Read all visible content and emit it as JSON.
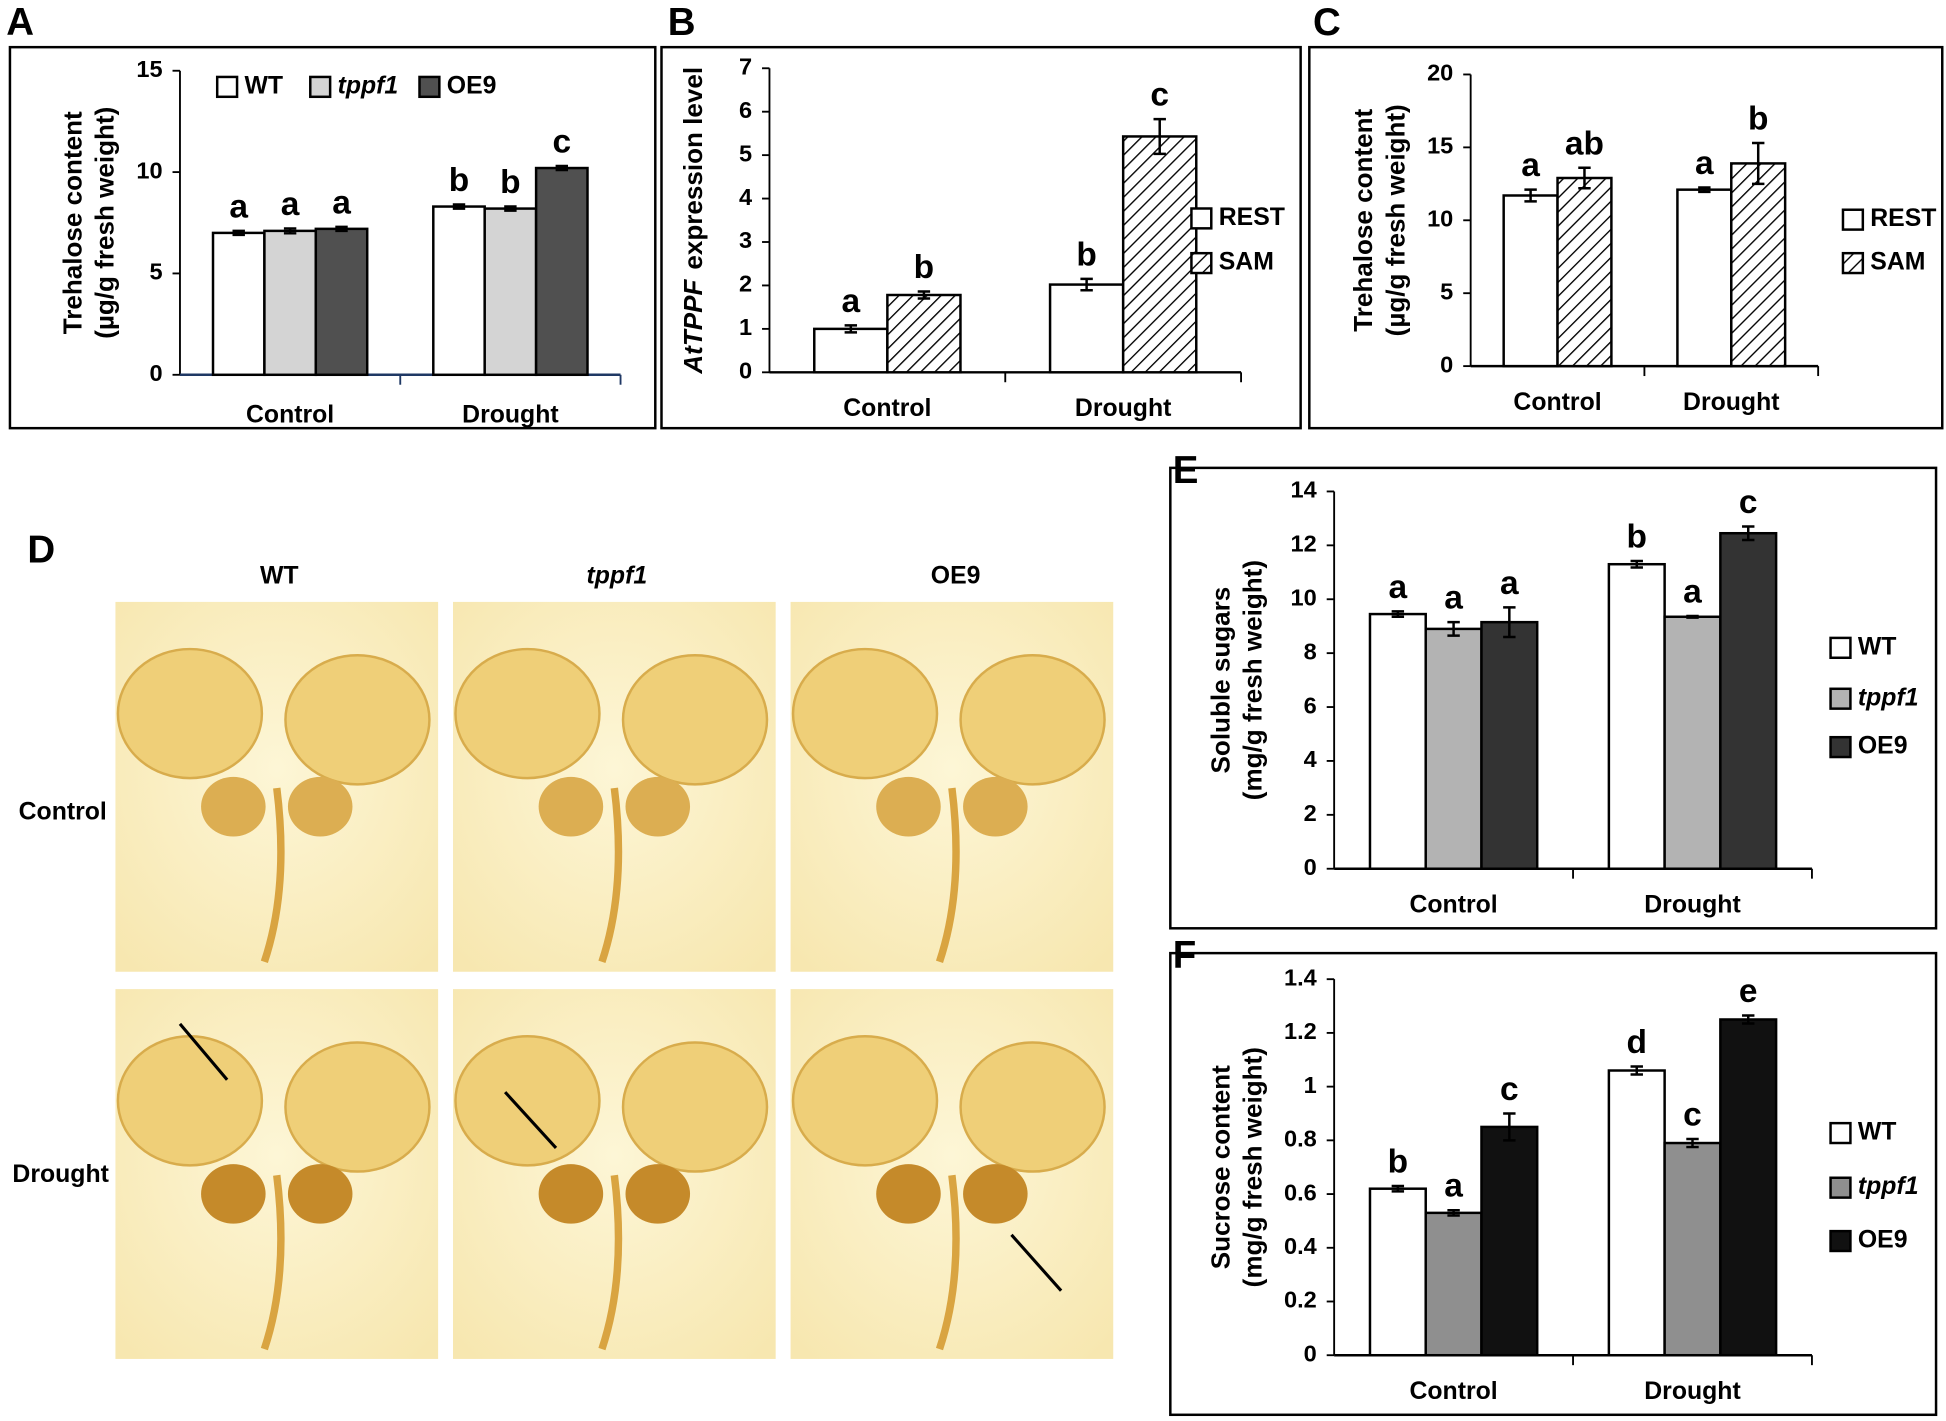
{
  "chart_data": [
    {
      "type": "bar",
      "panel_label": "A",
      "ylabel": [
        "Trehalose content",
        "(µg/g fresh weight)"
      ],
      "categories": [
        "Control",
        "Drought"
      ],
      "ylim": [
        0,
        15
      ],
      "yticks": [
        0,
        5,
        10,
        15
      ],
      "series": [
        {
          "name": "WT",
          "color": "#ffffff",
          "values": [
            7.0,
            8.3
          ],
          "errors": [
            0.1,
            0.1
          ],
          "letters": [
            "a",
            "b"
          ]
        },
        {
          "name": "tppf1",
          "italic": true,
          "color": "#d4d4d4",
          "values": [
            7.1,
            8.2
          ],
          "errors": [
            0.12,
            0.1
          ],
          "letters": [
            "a",
            "b"
          ]
        },
        {
          "name": "OE9",
          "color": "#505050",
          "values": [
            7.2,
            10.2
          ],
          "errors": [
            0.1,
            0.1
          ],
          "letters": [
            "a",
            "c"
          ]
        }
      ]
    },
    {
      "type": "bar",
      "panel_label": "B",
      "ylabel_parts": [
        {
          "text": "AtTPPF",
          "italic": true
        },
        {
          "text": "expression level",
          "italic": false
        }
      ],
      "categories": [
        "Control",
        "Drought"
      ],
      "ylim": [
        0,
        7
      ],
      "yticks": [
        0,
        1,
        2,
        3,
        4,
        5,
        6,
        7
      ],
      "series": [
        {
          "name": "REST",
          "color": "#ffffff",
          "values": [
            1.0,
            2.02
          ],
          "errors": [
            0.08,
            0.13
          ],
          "letters": [
            "a",
            "b"
          ]
        },
        {
          "name": "SAM",
          "color": "#ffffff",
          "hatch": true,
          "values": [
            1.78,
            5.43
          ],
          "errors": [
            0.08,
            0.4
          ],
          "letters": [
            "b",
            "c"
          ]
        }
      ]
    },
    {
      "type": "bar",
      "panel_label": "C",
      "ylabel": [
        "Trehalose content",
        "(µg/g fresh weight)"
      ],
      "categories": [
        "Control",
        "Drought"
      ],
      "ylim": [
        0,
        20
      ],
      "yticks": [
        0,
        5,
        10,
        15,
        20
      ],
      "series": [
        {
          "name": "REST",
          "color": "#ffffff",
          "values": [
            11.7,
            12.1
          ],
          "errors": [
            0.4,
            0.15
          ],
          "letters": [
            "a",
            "a"
          ]
        },
        {
          "name": "SAM",
          "color": "#ffffff",
          "hatch": true,
          "values": [
            12.9,
            13.9
          ],
          "errors": [
            0.7,
            1.4
          ],
          "letters": [
            "ab",
            "b"
          ]
        }
      ]
    },
    {
      "type": "bar",
      "panel_label": "E",
      "ylabel": [
        "Soluble sugars",
        "(mg/g fresh weight)"
      ],
      "categories": [
        "Control",
        "Drought"
      ],
      "ylim": [
        0,
        14
      ],
      "yticks": [
        0,
        2,
        4,
        6,
        8,
        10,
        12,
        14
      ],
      "series": [
        {
          "name": "WT",
          "color": "#ffffff",
          "values": [
            9.45,
            11.3
          ],
          "errors": [
            0.1,
            0.12
          ],
          "letters": [
            "a",
            "b"
          ]
        },
        {
          "name": "tppf1",
          "italic": true,
          "color": "#b3b3b3",
          "values": [
            8.9,
            9.35
          ],
          "errors": [
            0.25,
            0.03
          ],
          "letters": [
            "a",
            "a"
          ]
        },
        {
          "name": "OE9",
          "color": "#333333",
          "values": [
            9.15,
            12.45
          ],
          "errors": [
            0.55,
            0.25
          ],
          "letters": [
            "a",
            "c"
          ]
        }
      ]
    },
    {
      "type": "bar",
      "panel_label": "F",
      "ylabel": [
        "Sucrose content",
        "(mg/g fresh weight)"
      ],
      "categories": [
        "Control",
        "Drought"
      ],
      "ylim": [
        0,
        1.4
      ],
      "yticks": [
        0,
        0.2,
        0.4,
        0.6,
        0.8,
        1,
        1.2,
        1.4
      ],
      "series": [
        {
          "name": "WT",
          "color": "#ffffff",
          "values": [
            0.62,
            1.06
          ],
          "errors": [
            0.01,
            0.015
          ],
          "letters": [
            "b",
            "d"
          ]
        },
        {
          "name": "tppf1",
          "italic": true,
          "color": "#8f8f8f",
          "values": [
            0.53,
            0.79
          ],
          "errors": [
            0.01,
            0.015
          ],
          "letters": [
            "a",
            "c"
          ]
        },
        {
          "name": "OE9",
          "color": "#111111",
          "values": [
            0.85,
            1.25
          ],
          "errors": [
            0.05,
            0.015
          ],
          "letters": [
            "c",
            "e"
          ]
        }
      ]
    }
  ],
  "photo_panel": {
    "panel_label": "D",
    "columns": [
      "WT",
      "tppf1",
      "OE9"
    ],
    "rows": [
      "Control",
      "Drought"
    ]
  }
}
